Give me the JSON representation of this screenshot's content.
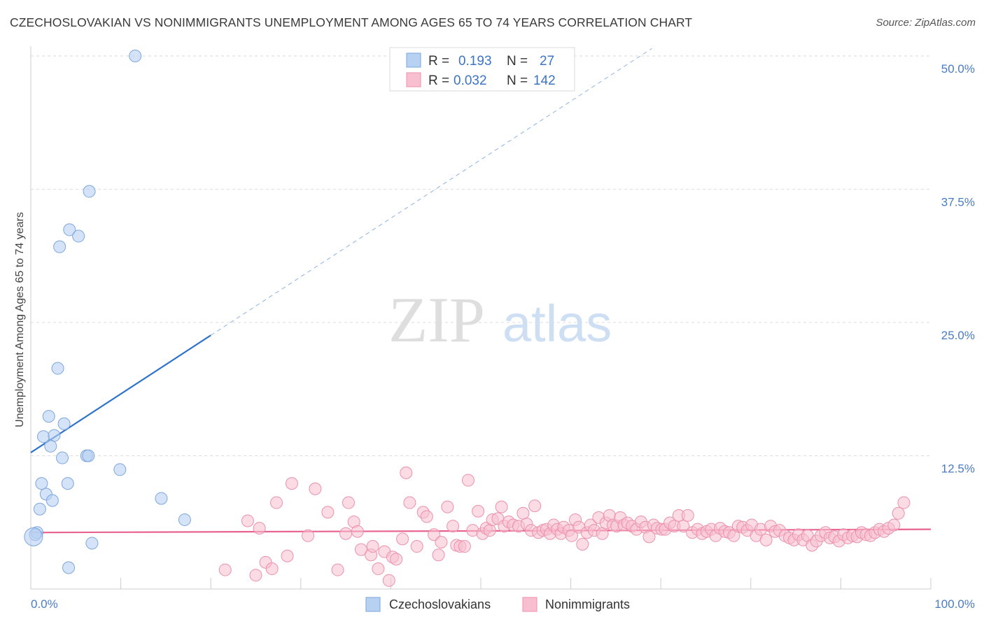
{
  "title": "CZECHOSLOVAKIAN VS NONIMMIGRANTS UNEMPLOYMENT AMONG AGES 65 TO 74 YEARS CORRELATION CHART",
  "source": "Source: ZipAtlas.com",
  "watermark": {
    "zip": "ZIP",
    "atlas": "atlas"
  },
  "colors": {
    "blue_fill": "#b7d1f2",
    "blue_stroke": "#7ea6dd",
    "blue_line": "#2f73c9",
    "pink_fill": "#f7bfd0",
    "pink_stroke": "#ec90ad",
    "pink_line": "#e8638f",
    "grid": "#dcdcdc"
  },
  "legend": {
    "rows": [
      {
        "r_label": "R =",
        "r_value": "0.193",
        "n_label": "N =",
        "n_value": "27"
      },
      {
        "r_label": "R =",
        "r_value": "0.032",
        "n_label": "N =",
        "n_value": "142"
      }
    ]
  },
  "chart_data": {
    "type": "scatter",
    "xlabel": "",
    "ylabel": "Unemployment Among Ages 65 to 74 years",
    "xlim": [
      0,
      100
    ],
    "ylim": [
      0,
      50
    ],
    "x_tick_labels": [
      "0.0%",
      "100.0%"
    ],
    "y_ticks": [
      12.5,
      25.0,
      37.5,
      50.0
    ],
    "y_tick_labels": [
      "12.5%",
      "25.0%",
      "37.5%",
      "50.0%"
    ],
    "grid": true,
    "legend_position": "top-center",
    "series": [
      {
        "name": "Czechoslovakians",
        "r": 0.193,
        "n": 27,
        "trend": {
          "x0": 0,
          "y0": 12.8,
          "x1": 20,
          "y1": 23.8,
          "dashed_to_x": 69,
          "dashed_to_y": 50.7
        },
        "points": [
          [
            11.6,
            50.0
          ],
          [
            6.5,
            37.3
          ],
          [
            4.3,
            33.7
          ],
          [
            5.3,
            33.1
          ],
          [
            3.2,
            32.1
          ],
          [
            3.0,
            20.7
          ],
          [
            2.0,
            16.2
          ],
          [
            3.7,
            15.5
          ],
          [
            1.4,
            14.3
          ],
          [
            2.6,
            14.4
          ],
          [
            2.2,
            13.4
          ],
          [
            3.5,
            12.3
          ],
          [
            6.2,
            12.5
          ],
          [
            6.4,
            12.5
          ],
          [
            9.9,
            11.2
          ],
          [
            1.2,
            9.9
          ],
          [
            4.1,
            9.9
          ],
          [
            1.7,
            8.9
          ],
          [
            2.4,
            8.3
          ],
          [
            14.5,
            8.5
          ],
          [
            1.0,
            7.5
          ],
          [
            17.1,
            6.5
          ],
          [
            0.7,
            5.3
          ],
          [
            0.5,
            5.1
          ],
          [
            0.3,
            4.9
          ],
          [
            6.8,
            4.3
          ],
          [
            4.2,
            2.0
          ]
        ]
      },
      {
        "name": "Nonimmigrants",
        "r": 0.032,
        "n": 142,
        "trend": {
          "x0": 0,
          "y0": 5.3,
          "x1": 100,
          "y1": 5.6
        },
        "points": [
          [
            21.6,
            1.8
          ],
          [
            24.1,
            6.4
          ],
          [
            25.0,
            1.3
          ],
          [
            25.4,
            5.7
          ],
          [
            26.1,
            2.5
          ],
          [
            26.8,
            1.9
          ],
          [
            27.3,
            8.1
          ],
          [
            28.5,
            3.1
          ],
          [
            29.0,
            9.9
          ],
          [
            30.8,
            5.0
          ],
          [
            31.6,
            9.4
          ],
          [
            33.0,
            7.2
          ],
          [
            34.1,
            1.8
          ],
          [
            35.0,
            5.2
          ],
          [
            35.3,
            8.1
          ],
          [
            35.9,
            6.3
          ],
          [
            36.3,
            5.4
          ],
          [
            36.7,
            3.7
          ],
          [
            37.8,
            3.2
          ],
          [
            38.0,
            4.0
          ],
          [
            38.6,
            1.9
          ],
          [
            39.3,
            3.5
          ],
          [
            39.8,
            0.8
          ],
          [
            40.2,
            3.0
          ],
          [
            40.6,
            2.8
          ],
          [
            41.3,
            4.7
          ],
          [
            41.7,
            10.9
          ],
          [
            42.1,
            8.1
          ],
          [
            42.9,
            4.0
          ],
          [
            43.6,
            7.2
          ],
          [
            44.0,
            6.8
          ],
          [
            44.8,
            5.1
          ],
          [
            45.3,
            3.2
          ],
          [
            45.6,
            4.4
          ],
          [
            46.3,
            7.7
          ],
          [
            46.9,
            5.9
          ],
          [
            47.3,
            4.1
          ],
          [
            47.7,
            4.0
          ],
          [
            48.2,
            4.0
          ],
          [
            48.6,
            10.2
          ],
          [
            49.1,
            5.5
          ],
          [
            49.7,
            7.3
          ],
          [
            50.2,
            5.2
          ],
          [
            50.6,
            5.7
          ],
          [
            51.0,
            5.5
          ],
          [
            51.3,
            6.5
          ],
          [
            51.9,
            6.6
          ],
          [
            52.3,
            7.7
          ],
          [
            52.6,
            5.9
          ],
          [
            53.1,
            6.3
          ],
          [
            53.6,
            6.0
          ],
          [
            54.2,
            5.9
          ],
          [
            54.7,
            7.1
          ],
          [
            55.1,
            6.1
          ],
          [
            55.6,
            5.5
          ],
          [
            56.0,
            7.8
          ],
          [
            56.4,
            5.3
          ],
          [
            56.9,
            5.5
          ],
          [
            57.3,
            5.6
          ],
          [
            57.7,
            5.2
          ],
          [
            58.1,
            6.0
          ],
          [
            58.5,
            5.6
          ],
          [
            58.9,
            5.2
          ],
          [
            59.2,
            5.8
          ],
          [
            59.8,
            5.5
          ],
          [
            60.1,
            5.0
          ],
          [
            60.5,
            6.5
          ],
          [
            60.9,
            5.8
          ],
          [
            61.3,
            4.2
          ],
          [
            61.8,
            5.3
          ],
          [
            62.2,
            6.0
          ],
          [
            62.6,
            5.5
          ],
          [
            63.1,
            6.7
          ],
          [
            63.5,
            5.2
          ],
          [
            63.9,
            6.2
          ],
          [
            64.3,
            6.9
          ],
          [
            64.7,
            6.0
          ],
          [
            65.1,
            5.9
          ],
          [
            65.5,
            6.7
          ],
          [
            65.9,
            6.0
          ],
          [
            66.3,
            6.2
          ],
          [
            66.8,
            5.9
          ],
          [
            67.3,
            5.6
          ],
          [
            67.8,
            6.3
          ],
          [
            68.3,
            5.8
          ],
          [
            68.7,
            4.9
          ],
          [
            69.2,
            6.0
          ],
          [
            69.6,
            5.7
          ],
          [
            70.1,
            5.6
          ],
          [
            70.5,
            5.6
          ],
          [
            71.0,
            6.2
          ],
          [
            71.5,
            5.9
          ],
          [
            72.0,
            6.9
          ],
          [
            72.5,
            5.9
          ],
          [
            73.0,
            6.9
          ],
          [
            73.5,
            5.3
          ],
          [
            74.1,
            5.6
          ],
          [
            74.6,
            5.2
          ],
          [
            75.1,
            5.4
          ],
          [
            75.6,
            5.6
          ],
          [
            76.1,
            5.0
          ],
          [
            76.6,
            5.7
          ],
          [
            77.1,
            5.4
          ],
          [
            77.6,
            5.3
          ],
          [
            78.1,
            5.0
          ],
          [
            78.6,
            5.9
          ],
          [
            79.1,
            5.8
          ],
          [
            79.6,
            5.5
          ],
          [
            80.1,
            6.0
          ],
          [
            80.6,
            5.0
          ],
          [
            81.1,
            5.6
          ],
          [
            81.7,
            4.6
          ],
          [
            82.2,
            5.9
          ],
          [
            82.7,
            5.4
          ],
          [
            83.2,
            5.5
          ],
          [
            83.8,
            5.0
          ],
          [
            84.3,
            4.8
          ],
          [
            84.8,
            4.6
          ],
          [
            85.3,
            5.1
          ],
          [
            85.8,
            4.6
          ],
          [
            86.3,
            5.0
          ],
          [
            86.8,
            4.1
          ],
          [
            87.3,
            4.5
          ],
          [
            87.8,
            5.0
          ],
          [
            88.3,
            5.3
          ],
          [
            88.8,
            4.8
          ],
          [
            89.3,
            4.9
          ],
          [
            89.8,
            4.5
          ],
          [
            90.3,
            5.1
          ],
          [
            90.8,
            4.8
          ],
          [
            91.3,
            5.0
          ],
          [
            91.8,
            4.9
          ],
          [
            92.3,
            5.3
          ],
          [
            92.8,
            5.1
          ],
          [
            93.3,
            5.0
          ],
          [
            93.8,
            5.3
          ],
          [
            94.3,
            5.6
          ],
          [
            94.8,
            5.4
          ],
          [
            95.3,
            5.7
          ],
          [
            95.9,
            6.0
          ],
          [
            96.4,
            7.1
          ],
          [
            97.0,
            8.1
          ]
        ]
      }
    ]
  }
}
